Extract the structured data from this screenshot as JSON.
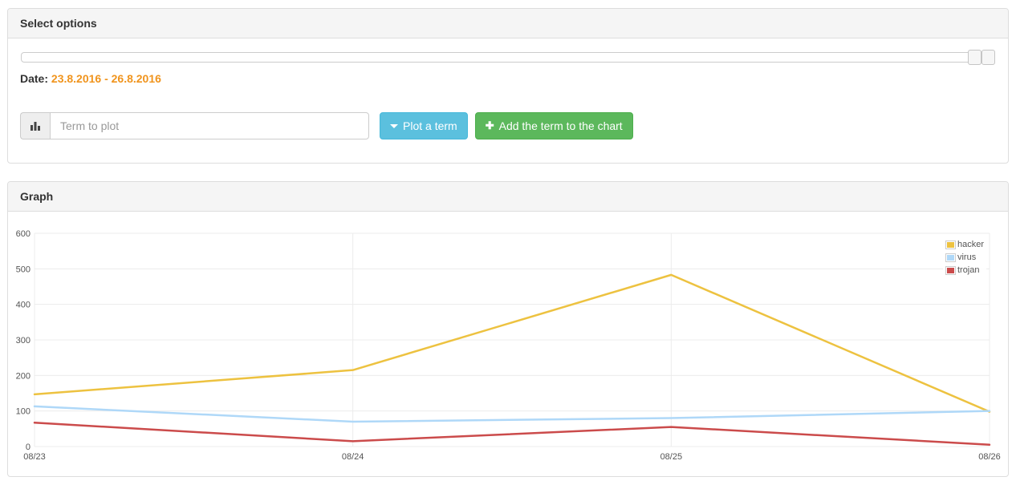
{
  "options_panel": {
    "title": "Select options",
    "date_label": "Date:",
    "date_value": "23.8.2016 - 26.8.2016",
    "date_color": "#f0941d",
    "term_input": {
      "placeholder": "Term to plot",
      "value": ""
    },
    "plot_button_label": "Plot a term",
    "add_button_label": "Add the term to the chart",
    "add_button_plus_glyph": "✚",
    "icons": {
      "input_addon": "bar-chart-icon",
      "plot_button": "caret-down-icon",
      "add_button": "plus-icon"
    }
  },
  "graph_panel": {
    "title": "Graph"
  },
  "chart_data": {
    "type": "line",
    "categories": [
      "08/23",
      "08/24",
      "08/25",
      "08/26"
    ],
    "series": [
      {
        "name": "hacker",
        "color": "#edc240",
        "values": [
          147,
          215,
          483,
          98
        ]
      },
      {
        "name": "virus",
        "color": "#afd8f8",
        "values": [
          113,
          70,
          80,
          100
        ]
      },
      {
        "name": "trojan",
        "color": "#cb4b4b",
        "values": [
          67,
          15,
          55,
          5
        ]
      }
    ],
    "ylim": [
      0,
      600
    ],
    "ytick_step": 100,
    "grid": true,
    "gridline_color": "#ececec",
    "tick_label_color": "#545454",
    "legend_position": "top-right"
  }
}
